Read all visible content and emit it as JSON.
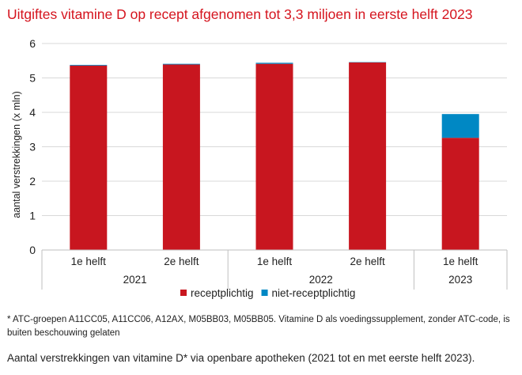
{
  "chart_data": {
    "type": "bar",
    "stacked": true,
    "title": "Uitgiftes vitamine D op recept afgenomen tot 3,3 miljoen in eerste helft 2023",
    "ylabel": "aantal verstrekkingen (x mln)",
    "xlabel": "",
    "ylim": [
      0,
      6
    ],
    "yticks": [
      "0",
      "1",
      "2",
      "3",
      "4",
      "5",
      "6"
    ],
    "grid": true,
    "categories": [
      "1e helft",
      "2e helft",
      "1e helft",
      "2e helft",
      "1e helft"
    ],
    "groups": [
      {
        "label": "2021",
        "span": 2
      },
      {
        "label": "2022",
        "span": 2
      },
      {
        "label": "2023",
        "span": 1
      }
    ],
    "series": [
      {
        "name": "receptplichtig",
        "color": "#c8161f",
        "values": [
          5.36,
          5.39,
          5.41,
          5.45,
          3.26
        ]
      },
      {
        "name": "niet-receptplichtig",
        "color": "#0088c4",
        "values": [
          0.02,
          0.02,
          0.03,
          0.01,
          0.69
        ]
      }
    ],
    "legend_position": "bottom"
  },
  "footnote": "* ATC-groepen A11CC05, A11CC06, A12AX, M05BB03, M05BB05. Vitamine D als voedingssupplement, zonder ATC-code, is buiten beschouwing gelaten",
  "caption": "Aantal verstrekkingen van vitamine D* via openbare apotheken (2021 tot en met eerste helft 2023)."
}
